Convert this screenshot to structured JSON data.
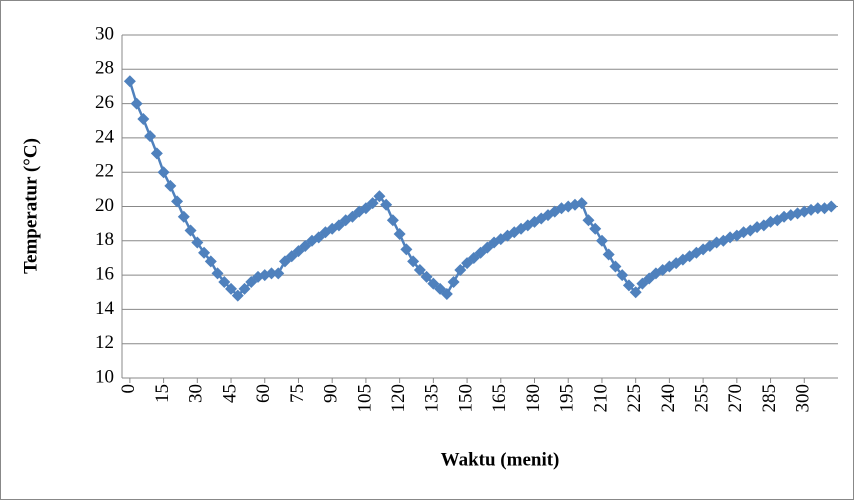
{
  "chart_data": {
    "type": "line",
    "x_label": "Waktu (menit)",
    "y_label": "Temperatur (°C)",
    "x": [
      0,
      3,
      6,
      9,
      12,
      15,
      18,
      21,
      24,
      27,
      30,
      33,
      36,
      39,
      42,
      45,
      48,
      51,
      54,
      57,
      60,
      63,
      66,
      69,
      72,
      75,
      78,
      81,
      84,
      87,
      90,
      93,
      96,
      99,
      102,
      105,
      108,
      111,
      114,
      117,
      120,
      123,
      126,
      129,
      132,
      135,
      138,
      141,
      144,
      147,
      150,
      153,
      156,
      159,
      162,
      165,
      168,
      171,
      174,
      177,
      180,
      183,
      186,
      189,
      192,
      195,
      198,
      201,
      204,
      207,
      210,
      213,
      216,
      219,
      222,
      225,
      228,
      231,
      234,
      237,
      240,
      243,
      246,
      249,
      252,
      255,
      258,
      261,
      264,
      267,
      270,
      273,
      276,
      279,
      282,
      285,
      288,
      291,
      294,
      297,
      300,
      303,
      306,
      309,
      312
    ],
    "series": [
      {
        "color": "#4f81bd",
        "values": [
          27.3,
          26.0,
          25.1,
          24.1,
          23.1,
          22.0,
          21.2,
          20.3,
          19.4,
          18.6,
          17.9,
          17.3,
          16.8,
          16.1,
          15.6,
          15.2,
          14.8,
          15.2,
          15.6,
          15.9,
          16.0,
          16.1,
          16.1,
          16.8,
          17.1,
          17.4,
          17.7,
          18.0,
          18.2,
          18.5,
          18.7,
          18.9,
          19.2,
          19.4,
          19.7,
          19.9,
          20.2,
          20.6,
          20.1,
          19.2,
          18.4,
          17.5,
          16.8,
          16.3,
          15.9,
          15.5,
          15.2,
          14.9,
          15.6,
          16.3,
          16.7,
          17.0,
          17.3,
          17.6,
          17.9,
          18.1,
          18.3,
          18.5,
          18.7,
          18.9,
          19.1,
          19.3,
          19.5,
          19.7,
          19.9,
          20.0,
          20.1,
          20.2,
          19.2,
          18.7,
          18.0,
          17.2,
          16.5,
          16.0,
          15.4,
          15.0,
          15.5,
          15.8,
          16.1,
          16.3,
          16.5,
          16.7,
          16.9,
          17.1,
          17.3,
          17.5,
          17.7,
          17.9,
          18.0,
          18.2,
          18.3,
          18.5,
          18.6,
          18.8,
          18.9,
          19.1,
          19.2,
          19.4,
          19.5,
          19.6,
          19.7,
          19.8,
          19.9,
          19.9,
          20.0
        ]
      }
    ],
    "xlim": [
      -3.5,
      315
    ],
    "xticks": [
      0,
      15,
      30,
      45,
      60,
      75,
      90,
      105,
      120,
      135,
      150,
      165,
      180,
      195,
      210,
      225,
      240,
      255,
      270,
      285,
      300
    ],
    "ylim": [
      10,
      30
    ],
    "yticks": [
      10,
      12,
      14,
      16,
      18,
      20,
      22,
      24,
      26,
      28,
      30
    ],
    "grid": true
  }
}
